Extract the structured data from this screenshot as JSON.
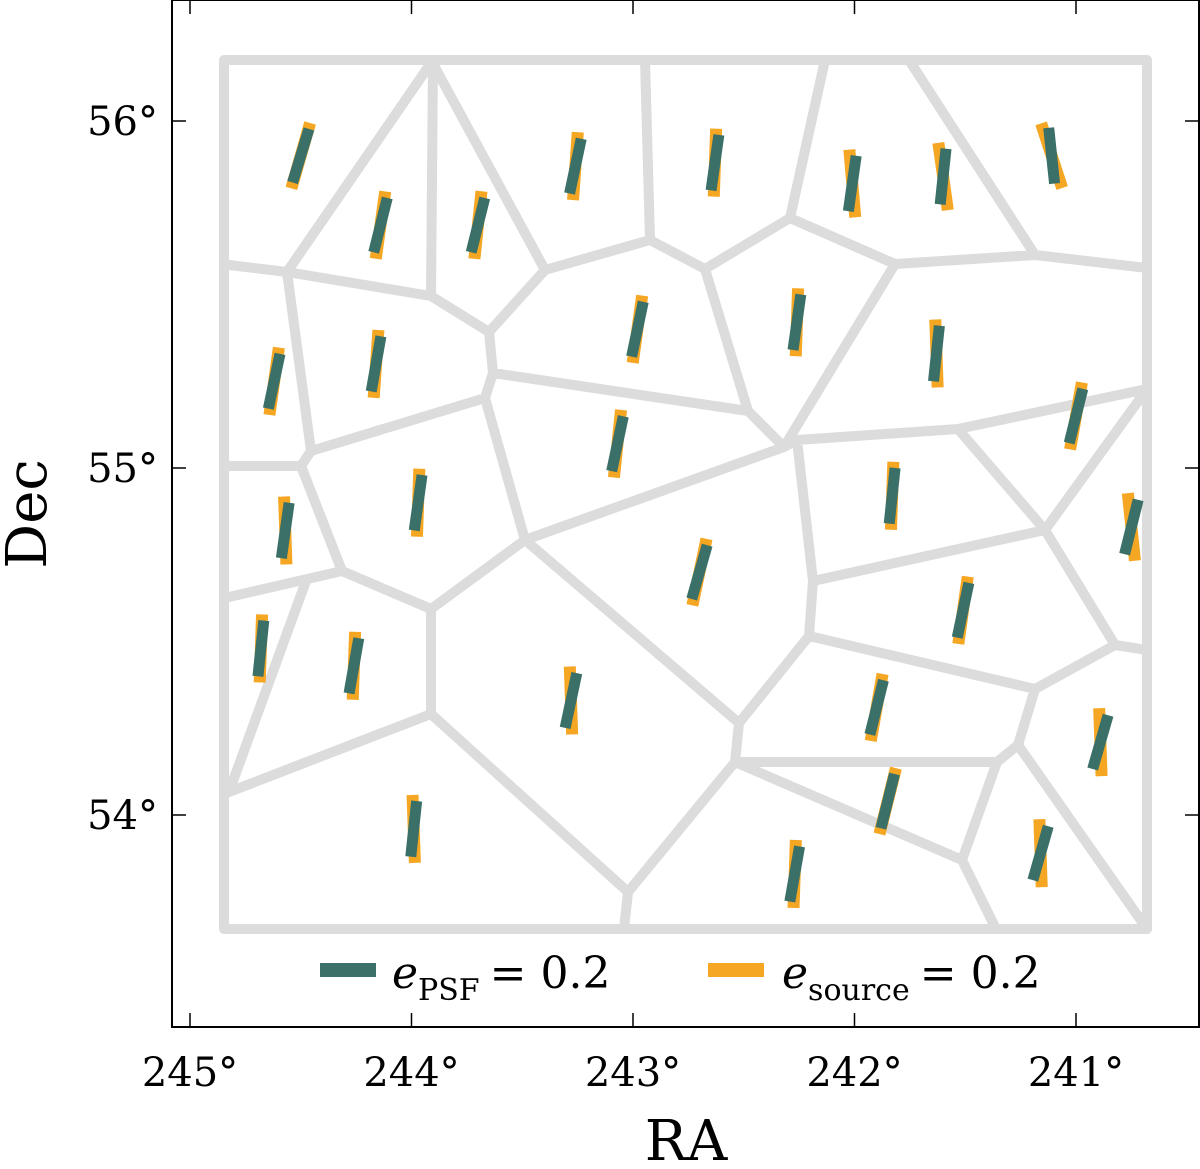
{
  "chart_data": {
    "type": "scatter",
    "title": "",
    "xlabel": "RA",
    "ylabel": "Dec",
    "x_reversed": true,
    "xlim": [
      245.0,
      240.5
    ],
    "ylim": [
      53.4,
      56.3
    ],
    "xticks": [
      {
        "value": 245,
        "label": "245°"
      },
      {
        "value": 244,
        "label": "244°"
      },
      {
        "value": 243,
        "label": "243°"
      },
      {
        "value": 242,
        "label": "242°"
      },
      {
        "value": 241,
        "label": "241°"
      }
    ],
    "yticks": [
      {
        "value": 56,
        "label": "56°"
      },
      {
        "value": 55,
        "label": "55°"
      },
      {
        "value": 54,
        "label": "54°"
      }
    ],
    "grid": false,
    "field_boundary_color": "#dcdcdc",
    "legend": {
      "placement": "bottom-center",
      "entries": [
        {
          "name": "e_PSF = 0.2",
          "base": "e",
          "sub": "PSF",
          "value_text": "= 0.2",
          "color": "#3b7068"
        },
        {
          "name": "e_source = 0.2",
          "base": "e",
          "sub": "source",
          "value_text": "= 0.2",
          "color": "#f5a623"
        }
      ]
    },
    "colors": {
      "psf": "#3b7068",
      "source": "#f5a623"
    },
    "series": [
      {
        "name": "e_PSF = 0.2",
        "points": [
          {
            "ra": 244.5,
            "dec": 55.9,
            "angle_deg": 17
          },
          {
            "ra": 244.14,
            "dec": 55.7,
            "angle_deg": 14
          },
          {
            "ra": 243.7,
            "dec": 55.7,
            "angle_deg": 14
          },
          {
            "ra": 243.26,
            "dec": 55.87,
            "angle_deg": 12
          },
          {
            "ra": 242.63,
            "dec": 55.88,
            "angle_deg": 8
          },
          {
            "ra": 242.01,
            "dec": 55.82,
            "angle_deg": 8
          },
          {
            "ra": 241.6,
            "dec": 55.84,
            "angle_deg": 6
          },
          {
            "ra": 241.11,
            "dec": 55.9,
            "angle_deg": -6
          },
          {
            "ra": 244.62,
            "dec": 55.25,
            "angle_deg": 12
          },
          {
            "ra": 244.16,
            "dec": 55.3,
            "angle_deg": 10
          },
          {
            "ra": 242.98,
            "dec": 55.4,
            "angle_deg": 12
          },
          {
            "ra": 242.26,
            "dec": 55.42,
            "angle_deg": 8
          },
          {
            "ra": 241.63,
            "dec": 55.33,
            "angle_deg": 6
          },
          {
            "ra": 241.0,
            "dec": 55.15,
            "angle_deg": 14
          },
          {
            "ra": 243.07,
            "dec": 55.07,
            "angle_deg": 12
          },
          {
            "ra": 244.57,
            "dec": 54.82,
            "angle_deg": 8
          },
          {
            "ra": 243.97,
            "dec": 54.9,
            "angle_deg": 8
          },
          {
            "ra": 241.83,
            "dec": 54.92,
            "angle_deg": 6
          },
          {
            "ra": 240.75,
            "dec": 54.83,
            "angle_deg": 14
          },
          {
            "ra": 242.7,
            "dec": 54.7,
            "angle_deg": 16
          },
          {
            "ra": 241.51,
            "dec": 54.59,
            "angle_deg": 12
          },
          {
            "ra": 244.68,
            "dec": 54.48,
            "angle_deg": 6
          },
          {
            "ra": 244.26,
            "dec": 54.43,
            "angle_deg": 10
          },
          {
            "ra": 243.28,
            "dec": 54.33,
            "angle_deg": 12
          },
          {
            "ra": 241.9,
            "dec": 54.31,
            "angle_deg": 14
          },
          {
            "ra": 240.89,
            "dec": 54.21,
            "angle_deg": 16
          },
          {
            "ra": 241.85,
            "dec": 54.04,
            "angle_deg": 14
          },
          {
            "ra": 243.99,
            "dec": 53.96,
            "angle_deg": 6
          },
          {
            "ra": 242.27,
            "dec": 53.83,
            "angle_deg": 10
          },
          {
            "ra": 241.16,
            "dec": 53.89,
            "angle_deg": 16
          }
        ]
      },
      {
        "name": "e_source = 0.2",
        "points": [
          {
            "ra": 244.5,
            "dec": 55.9,
            "angle_deg": 16
          },
          {
            "ra": 244.14,
            "dec": 55.7,
            "angle_deg": 8
          },
          {
            "ra": 243.7,
            "dec": 55.7,
            "angle_deg": 6
          },
          {
            "ra": 243.26,
            "dec": 55.87,
            "angle_deg": 4
          },
          {
            "ra": 242.63,
            "dec": 55.88,
            "angle_deg": 2
          },
          {
            "ra": 242.01,
            "dec": 55.82,
            "angle_deg": -5
          },
          {
            "ra": 241.6,
            "dec": 55.84,
            "angle_deg": -8
          },
          {
            "ra": 241.11,
            "dec": 55.9,
            "angle_deg": -18
          },
          {
            "ra": 244.62,
            "dec": 55.25,
            "angle_deg": 8
          },
          {
            "ra": 244.16,
            "dec": 55.3,
            "angle_deg": 4
          },
          {
            "ra": 242.98,
            "dec": 55.4,
            "angle_deg": 8
          },
          {
            "ra": 242.26,
            "dec": 55.42,
            "angle_deg": 2
          },
          {
            "ra": 241.63,
            "dec": 55.33,
            "angle_deg": -2
          },
          {
            "ra": 241.0,
            "dec": 55.15,
            "angle_deg": 10
          },
          {
            "ra": 243.07,
            "dec": 55.07,
            "angle_deg": 6
          },
          {
            "ra": 244.57,
            "dec": 54.82,
            "angle_deg": -2
          },
          {
            "ra": 243.97,
            "dec": 54.9,
            "angle_deg": 2
          },
          {
            "ra": 241.83,
            "dec": 54.92,
            "angle_deg": 2
          },
          {
            "ra": 240.75,
            "dec": 54.83,
            "angle_deg": -6
          },
          {
            "ra": 242.7,
            "dec": 54.7,
            "angle_deg": 12
          },
          {
            "ra": 241.51,
            "dec": 54.59,
            "angle_deg": 8
          },
          {
            "ra": 244.68,
            "dec": 54.48,
            "angle_deg": 2
          },
          {
            "ra": 244.26,
            "dec": 54.43,
            "angle_deg": 2
          },
          {
            "ra": 243.28,
            "dec": 54.33,
            "angle_deg": -2
          },
          {
            "ra": 241.9,
            "dec": 54.31,
            "angle_deg": 10
          },
          {
            "ra": 240.89,
            "dec": 54.21,
            "angle_deg": -2
          },
          {
            "ra": 241.85,
            "dec": 54.04,
            "angle_deg": 14
          },
          {
            "ra": 243.99,
            "dec": 53.96,
            "angle_deg": -2
          },
          {
            "ra": 242.27,
            "dec": 53.83,
            "angle_deg": 2
          },
          {
            "ra": 241.16,
            "dec": 53.89,
            "angle_deg": -2
          }
        ]
      }
    ]
  }
}
